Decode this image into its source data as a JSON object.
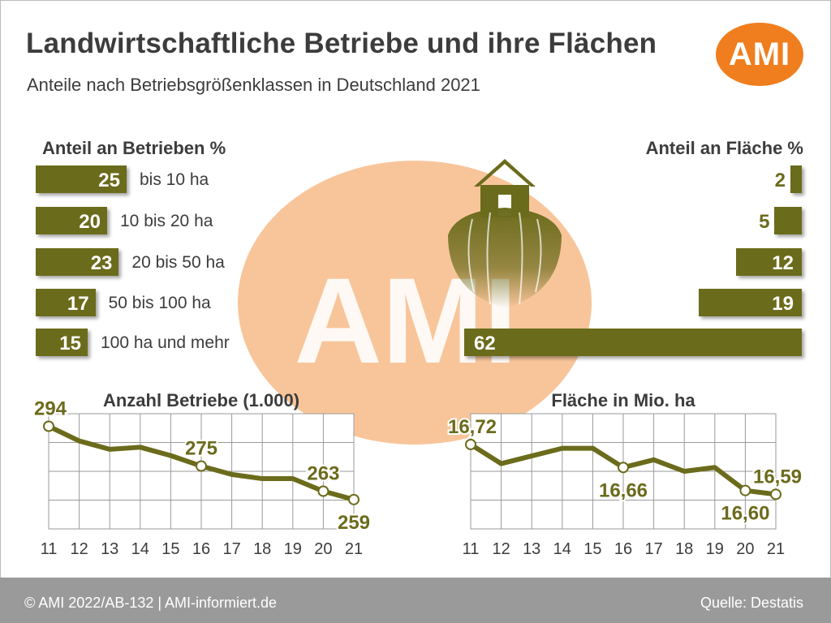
{
  "title": "Landwirtschaftliche Betriebe und ihre Flächen",
  "subtitle": "Anteile nach Betriebsgrößenklassen in Deutschland 2021",
  "logo_text": "AMI",
  "watermark_text": "AMI",
  "footer": {
    "copyright": "© AMI 2022/AB-132 | AMI-informiert.de",
    "source": "Quelle: Destatis"
  },
  "colors": {
    "bar": "#6b6b1c",
    "line": "#6b6b1c",
    "accent": "#f07e1e",
    "text": "#3c3c3c",
    "footer": "#9a9a9a"
  },
  "chart_data": [
    {
      "type": "bar",
      "title": "Anteil an Betrieben %",
      "orientation": "horizontal",
      "categories": [
        "bis 10 ha",
        "10 bis 20 ha",
        "20 bis 50 ha",
        "50 bis 100 ha",
        "100 ha und mehr"
      ],
      "values": [
        25,
        20,
        23,
        17,
        15
      ],
      "xlim": [
        0,
        25
      ]
    },
    {
      "type": "bar",
      "title": "Anteil an Fläche %",
      "orientation": "horizontal",
      "categories": [
        "bis 10 ha",
        "10 bis 20 ha",
        "20 bis 50 ha",
        "50 bis 100 ha",
        "100 ha und mehr"
      ],
      "values": [
        2,
        5,
        12,
        19,
        62
      ],
      "xlim": [
        0,
        62
      ]
    },
    {
      "type": "line",
      "title": "Anzahl Betriebe (1.000)",
      "x": [
        "11",
        "12",
        "13",
        "14",
        "15",
        "16",
        "17",
        "18",
        "19",
        "20",
        "21"
      ],
      "y": [
        294,
        287,
        283,
        284,
        280,
        275,
        271,
        269,
        269,
        263,
        259
      ],
      "ylim": [
        245,
        300
      ],
      "grid": true,
      "annotations": [
        {
          "x": "11",
          "label": "294"
        },
        {
          "x": "16",
          "label": "275"
        },
        {
          "x": "20",
          "label": "263"
        },
        {
          "x": "21",
          "label": "259"
        }
      ]
    },
    {
      "type": "line",
      "title": "Fläche in Mio. ha",
      "x": [
        "11",
        "12",
        "13",
        "14",
        "15",
        "16",
        "17",
        "18",
        "19",
        "20",
        "21"
      ],
      "y": [
        16.72,
        16.67,
        16.69,
        16.71,
        16.71,
        16.66,
        16.68,
        16.65,
        16.66,
        16.6,
        16.59
      ],
      "ylim": [
        16.5,
        16.8
      ],
      "grid": true,
      "annotations": [
        {
          "x": "11",
          "label": "16,72"
        },
        {
          "x": "16",
          "label": "16,66"
        },
        {
          "x": "20",
          "label": "16,60"
        },
        {
          "x": "21",
          "label": "16,59"
        }
      ]
    }
  ]
}
